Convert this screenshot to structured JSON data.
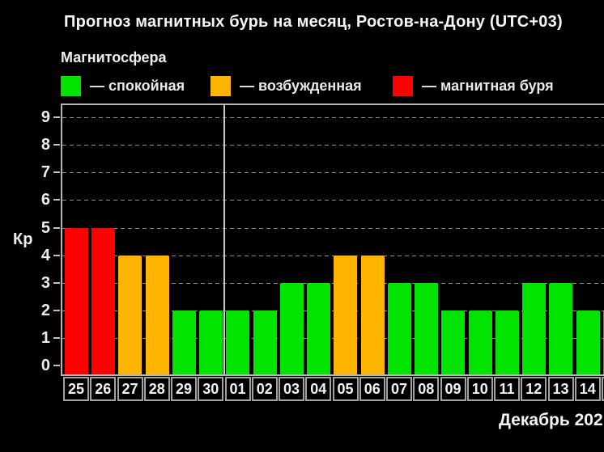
{
  "title": "Прогноз магнитных бурь на месяц, Ростов-на-Дону (UTC+03)",
  "legend": {
    "title": "Магнитосфера",
    "items": [
      {
        "state": "calm",
        "label": "— спокойная",
        "color": "#00e400"
      },
      {
        "state": "excited",
        "label": "— возбужденная",
        "color": "#ffb400"
      },
      {
        "state": "storm",
        "label": "— магнитная буря",
        "color": "#ff0000"
      }
    ]
  },
  "chart_data": {
    "type": "bar",
    "title": "Прогноз магнитных бурь на месяц, Ростов-на-Дону (UTC+03)",
    "ylabel": "Кр",
    "xlabel": "Декабрь 202",
    "ylim": [
      0,
      9
    ],
    "yticks": [
      0,
      1,
      2,
      3,
      4,
      5,
      6,
      7,
      8,
      9
    ],
    "grid": true,
    "legend_position": "top",
    "month_divider_before_category": "01",
    "categories": [
      "25",
      "26",
      "27",
      "28",
      "29",
      "30",
      "01",
      "02",
      "03",
      "04",
      "05",
      "06",
      "07",
      "08",
      "09",
      "10",
      "11",
      "12",
      "13",
      "14",
      ""
    ],
    "values": [
      5,
      5,
      4,
      4,
      2,
      2,
      2,
      2,
      3,
      3,
      4,
      4,
      3,
      3,
      2,
      2,
      2,
      3,
      3,
      2,
      2
    ],
    "states": [
      "storm",
      "storm",
      "excited",
      "excited",
      "calm",
      "calm",
      "calm",
      "calm",
      "calm",
      "calm",
      "excited",
      "excited",
      "calm",
      "calm",
      "calm",
      "calm",
      "calm",
      "calm",
      "calm",
      "calm",
      "calm"
    ],
    "colors": {
      "calm": "#00e400",
      "excited": "#ffb400",
      "storm": "#ff0000"
    }
  }
}
